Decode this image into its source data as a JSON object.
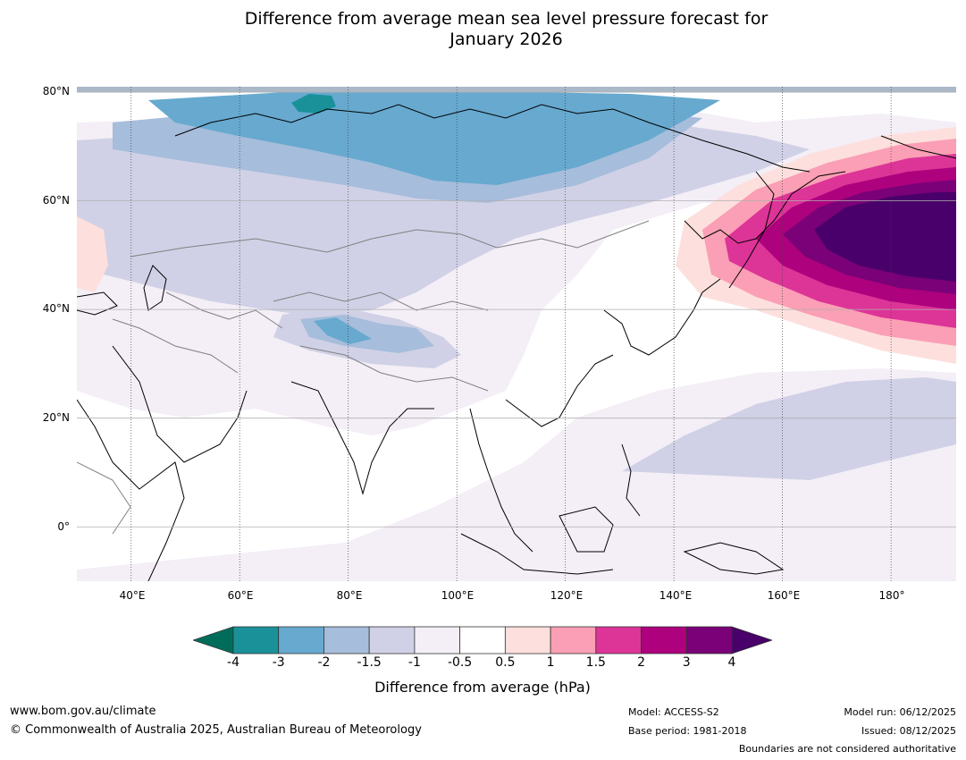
{
  "title": {
    "line1": "Difference from average mean sea level pressure forecast for",
    "line2": "January 2026"
  },
  "map": {
    "lat_labels": [
      "80°N",
      "60°N",
      "40°N",
      "20°N",
      "0°"
    ],
    "lon_labels": [
      "40°E",
      "60°E",
      "80°E",
      "100°E",
      "120°E",
      "140°E",
      "160°E",
      "180°"
    ],
    "extent": {
      "lon_min": 30,
      "lon_max": 192,
      "lat_min": -10,
      "lat_max": 81
    },
    "colors": {
      "neg4": "#1a9199",
      "neg3": "#67a9cf",
      "neg2": "#a6bddb",
      "neg15": "#d0d1e6",
      "neg1": "#f4eef7",
      "zero": "#ffffff",
      "pos05": "#fde0dd",
      "pos1": "#fa9fb5",
      "pos15": "#dd3497",
      "pos2": "#ae017e",
      "pos3": "#7a0177",
      "pos4": "#49006a",
      "below_min": "#006d5b",
      "top_band": "#aab8c8"
    }
  },
  "colorbar": {
    "ticks": [
      "-4",
      "-3",
      "-2",
      "-1.5",
      "-1",
      "-0.5",
      "0.5",
      "1",
      "1.5",
      "2",
      "3",
      "4"
    ],
    "colors": [
      "#1a9199",
      "#67a9cf",
      "#a6bddb",
      "#d0d1e6",
      "#f4eef7",
      "#ffffff",
      "#fde0dd",
      "#fa9fb5",
      "#dd3497",
      "#ae017e",
      "#7a0177"
    ],
    "below_color": "#006d5b",
    "above_color": "#49006a",
    "label": "Difference from average (hPa)"
  },
  "footer": {
    "url": "www.bom.gov.au/climate",
    "copyright": "© Commonwealth of Australia 2025, Australian Bureau of Meteorology",
    "model": "Model: ACCESS-S2",
    "base_period": "Base period: 1981-2018",
    "model_run": "Model run: 06/12/2025",
    "issued": "Issued: 08/12/2025",
    "boundaries_note": "Boundaries are not considered authoritative"
  }
}
